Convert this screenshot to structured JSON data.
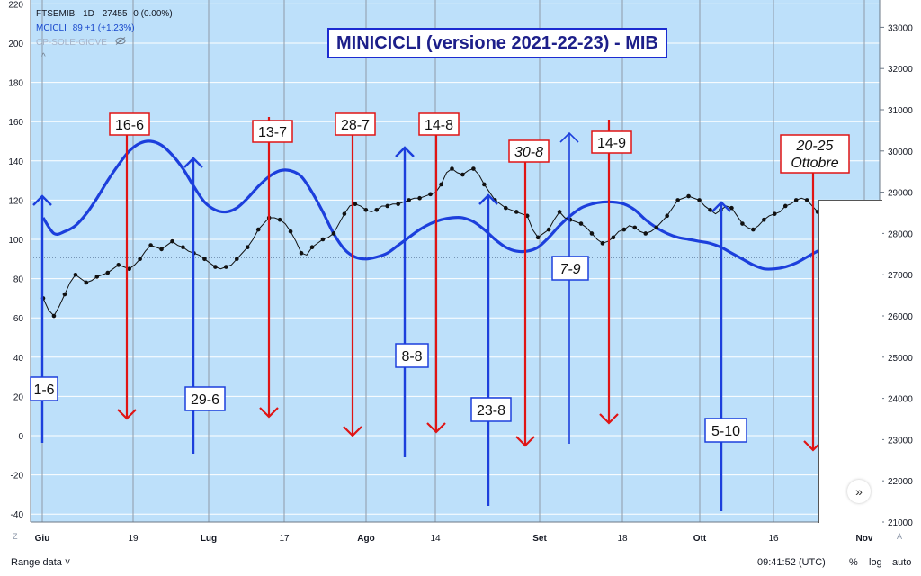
{
  "legend": {
    "symbol": "FTSEMIB",
    "timeframe": "1D",
    "last_value": "27455",
    "change": "0 (0.00%)",
    "indicator1_name": "MCICLI",
    "indicator1_value": "89 +1 (+1.23%)",
    "indicator2_name": "CP-SOLE-GIOVE",
    "eye_icon": "eye-off-icon",
    "caret": "^"
  },
  "title": "MINICICLI (versione 2021-22-23) - MIB",
  "footer": {
    "range": "Range data ˅",
    "time": "09:41:52 (UTC)",
    "percent": "%",
    "log": "log",
    "auto": "auto"
  },
  "corner_left": "Z",
  "corner_right": "A",
  "forward_button": "»",
  "colors": {
    "background": "#bde0fa",
    "cycle_line": "#1c3fdc",
    "price_line": "#111111",
    "top_marker": "#e01414",
    "bottom_marker": "#1c3fdc",
    "gridline": "#ffffff",
    "vline": "#8e9aa8"
  },
  "chart_data": {
    "type": "line",
    "x_axis_labels": [
      "Giu",
      "19",
      "Lug",
      "17",
      "Ago",
      "14",
      "Set",
      "18",
      "Ott",
      "16",
      "Nov"
    ],
    "left_axis": {
      "ticks": [
        220,
        200,
        180,
        160,
        140,
        120,
        100,
        80,
        60,
        40,
        20,
        0,
        -20,
        -40
      ],
      "ylim": [
        -40,
        220
      ]
    },
    "right_axis": {
      "ticks": [
        33000,
        32000,
        31000,
        30000,
        29000,
        28000,
        27000,
        26000,
        25000,
        24000,
        23000,
        22000,
        21000
      ],
      "ylim": [
        21000,
        33000
      ]
    },
    "series": [
      {
        "name": "MCICLI",
        "axis": "left",
        "x_days": [
          0,
          2,
          4,
          6,
          8,
          10,
          12,
          14,
          16,
          18,
          20,
          22,
          24,
          26,
          28,
          30,
          32,
          34,
          36,
          38,
          40,
          42,
          44,
          46,
          48,
          50,
          52,
          54,
          56,
          58,
          60,
          62,
          64,
          66,
          68,
          70,
          72,
          74,
          76,
          78,
          80,
          82,
          84,
          86,
          88,
          90,
          92,
          94,
          96,
          98,
          100,
          102,
          104,
          106,
          108,
          110,
          112,
          114,
          116,
          118,
          120,
          122,
          124,
          126,
          128,
          130,
          132,
          134,
          136,
          138,
          140,
          142,
          144,
          146
        ],
        "values": [
          111,
          103,
          104,
          107,
          113,
          121,
          130,
          138,
          145,
          149,
          150,
          148,
          143,
          136,
          127,
          119,
          115,
          114,
          116,
          121,
          127,
          132,
          135,
          135,
          132,
          124,
          114,
          103,
          95,
          91,
          90,
          91,
          93,
          97,
          101,
          105,
          108,
          110,
          111,
          111,
          109,
          105,
          100,
          96,
          94,
          94,
          96,
          101,
          107,
          112,
          116,
          118,
          119,
          119,
          118,
          115,
          110,
          106,
          103,
          101,
          100,
          99,
          98,
          96,
          93,
          90,
          87,
          85,
          85,
          86,
          88,
          91,
          94,
          96
        ]
      },
      {
        "name": "FTSEMIB",
        "axis": "left",
        "x_days": [
          0,
          1,
          2,
          3,
          4,
          5,
          6,
          7,
          8,
          9,
          10,
          11,
          12,
          13,
          14,
          15,
          16,
          17,
          18,
          19,
          20,
          21,
          22,
          23,
          24,
          25,
          26,
          27,
          28,
          29,
          30,
          31,
          32,
          33,
          34,
          35,
          36,
          37,
          38,
          39,
          40,
          41,
          42,
          43,
          44,
          45,
          46,
          47,
          48,
          49,
          50,
          51,
          52,
          53,
          54,
          55,
          56,
          57,
          58,
          59,
          60,
          61,
          62,
          63,
          64,
          65,
          66,
          67,
          68,
          69,
          70,
          71,
          72,
          73,
          74,
          75,
          76,
          77,
          78,
          79,
          80,
          81,
          82,
          83,
          84,
          85,
          86,
          87,
          88,
          89,
          90,
          91,
          92,
          93,
          94,
          95,
          96,
          97,
          98,
          99,
          100,
          101,
          102,
          103,
          104,
          105,
          106,
          107,
          108,
          109,
          110,
          111,
          112,
          113,
          114,
          115,
          116,
          117,
          118,
          119,
          120,
          121,
          122,
          123,
          124,
          125,
          126,
          127,
          128,
          129,
          130,
          131,
          132,
          133,
          134,
          135,
          136,
          137,
          138,
          139,
          140,
          141,
          142,
          143,
          144,
          145,
          146
        ],
        "values": [
          70,
          64,
          61,
          66,
          72,
          78,
          82,
          80,
          78,
          79,
          81,
          82,
          83,
          85,
          87,
          86,
          85,
          87,
          90,
          94,
          97,
          96,
          95,
          97,
          99,
          97,
          96,
          94,
          93,
          92,
          90,
          88,
          86,
          85,
          86,
          87,
          90,
          93,
          96,
          100,
          105,
          108,
          111,
          111,
          110,
          108,
          104,
          99,
          93,
          92,
          96,
          98,
          100,
          101,
          103,
          108,
          113,
          117,
          118,
          117,
          115,
          114,
          115,
          117,
          117,
          118,
          118,
          119,
          120,
          121,
          121,
          122,
          123,
          124,
          128,
          134,
          136,
          134,
          133,
          135,
          136,
          133,
          128,
          124,
          120,
          118,
          116,
          115,
          114,
          113,
          112,
          105,
          101,
          103,
          105,
          110,
          114,
          111,
          110,
          109,
          108,
          106,
          103,
          100,
          98,
          99,
          101,
          104,
          105,
          107,
          106,
          104,
          103,
          104,
          106,
          109,
          112,
          116,
          120,
          121,
          122,
          121,
          120,
          117,
          115,
          113,
          115,
          117,
          116,
          112,
          108,
          106,
          105,
          107,
          110,
          112,
          113,
          114,
          117,
          118,
          120,
          121,
          120,
          117,
          114,
          112,
          111
        ]
      }
    ],
    "top_markers": [
      {
        "label": "16-6",
        "italic": false
      },
      {
        "label": "13-7",
        "italic": false
      },
      {
        "label": "28-7",
        "italic": false
      },
      {
        "label": "14-8",
        "italic": false
      },
      {
        "label": "30-8",
        "italic": true
      },
      {
        "label": "14-9",
        "italic": false
      },
      {
        "label": "20-25 Ottobre",
        "italic": true
      }
    ],
    "bottom_markers": [
      {
        "label": "1-6"
      },
      {
        "label": "29-6"
      },
      {
        "label": "8-8"
      },
      {
        "label": "23-8"
      },
      {
        "label": "7-9"
      },
      {
        "label": "5-10"
      }
    ]
  }
}
